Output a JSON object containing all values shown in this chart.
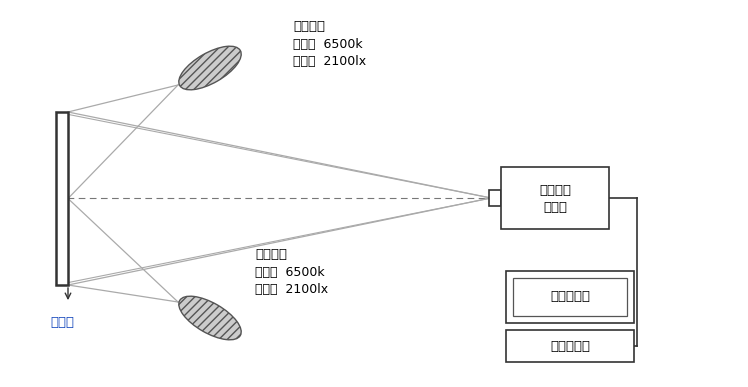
{
  "bg_color": "#ffffff",
  "text_color": "#000000",
  "line_color": "#aaaaaa",
  "dark_line_color": "#555555",
  "box_line_color": "#444444",
  "label_测试图": "测试图",
  "label_网络接口摄像机_1": "网络接口",
  "label_网络接口摄像机_2": "摄像机",
  "label_高清显示器": "高清显示器",
  "label_图形工作站": "图形工作站",
  "label_光照条件_top": "光照条件",
  "label_色温_top": "色温：  6500k",
  "label_照度_top": "照度：  2100lx",
  "label_光照条件_bot": "光照条件",
  "label_色温_bot": "色温：  6500k",
  "label_照度_bot": "照度：  2100lx",
  "font_size_label": 9.5,
  "font_size_box": 9.5,
  "font_size_annot": 9.0,
  "font_size_testchart": 9.5
}
